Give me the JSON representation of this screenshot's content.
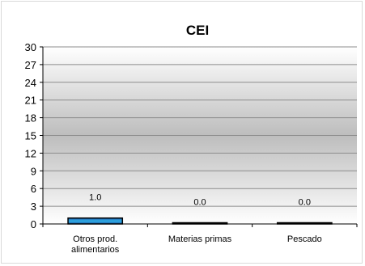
{
  "chart_data": {
    "type": "bar",
    "title": "CEI",
    "categories": [
      [
        "Otros prod.",
        "alimentarios"
      ],
      [
        "Materias primas"
      ],
      [
        "Pescado"
      ]
    ],
    "values": [
      1.0,
      0.0,
      0.0
    ],
    "data_labels": [
      "1.0",
      "0.0",
      "0.0"
    ],
    "ylim": [
      0,
      30
    ],
    "yticks": [
      "0",
      "3",
      "6",
      "9",
      "12",
      "15",
      "18",
      "21",
      "24",
      "27",
      "30"
    ],
    "grid": true,
    "bar_color": "#1f5aa8",
    "bar_highlight": "#2fb0e8",
    "plot_gradient": [
      "#ffffff",
      "#bdbdbd",
      "#ffffff"
    ]
  }
}
